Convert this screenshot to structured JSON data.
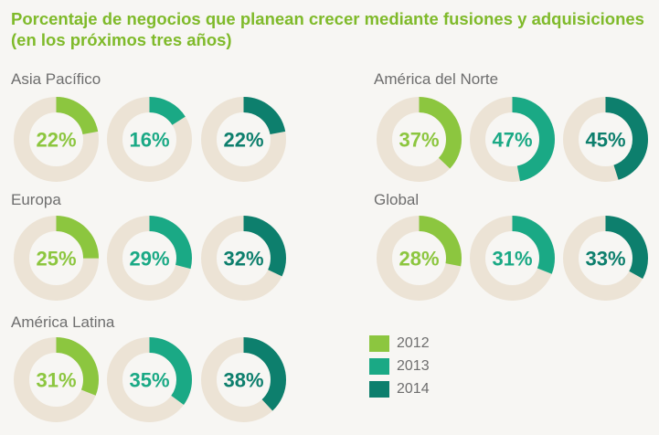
{
  "title_line1": "Porcentaje de negocios que planean crecer mediante fusiones y adquisiciones",
  "title_line2": "(en los próximos tres años)",
  "colors": {
    "2012": "#8cc63f",
    "2013": "#1aa985",
    "2014": "#0d7f6d",
    "track": "#ece3d5"
  },
  "chart_data": {
    "type": "donut",
    "series": [
      "2012",
      "2013",
      "2014"
    ],
    "regions": [
      {
        "name": "Asia Pacífico",
        "values": [
          22,
          16,
          22
        ]
      },
      {
        "name": "América del Norte",
        "values": [
          37,
          47,
          45
        ]
      },
      {
        "name": "Europa",
        "values": [
          25,
          29,
          32
        ]
      },
      {
        "name": "Global",
        "values": [
          28,
          31,
          33
        ]
      },
      {
        "name": "América Latina",
        "values": [
          31,
          35,
          38
        ]
      }
    ],
    "value_labels": [
      [
        "22%",
        "16%",
        "22%"
      ],
      [
        "37%",
        "47%",
        "45%"
      ],
      [
        "25%",
        "29%",
        "32%"
      ],
      [
        "28%",
        "31%",
        "33%"
      ],
      [
        "31%",
        "35%",
        "38%"
      ]
    ]
  },
  "legend": {
    "items": [
      "2012",
      "2013",
      "2014"
    ]
  }
}
